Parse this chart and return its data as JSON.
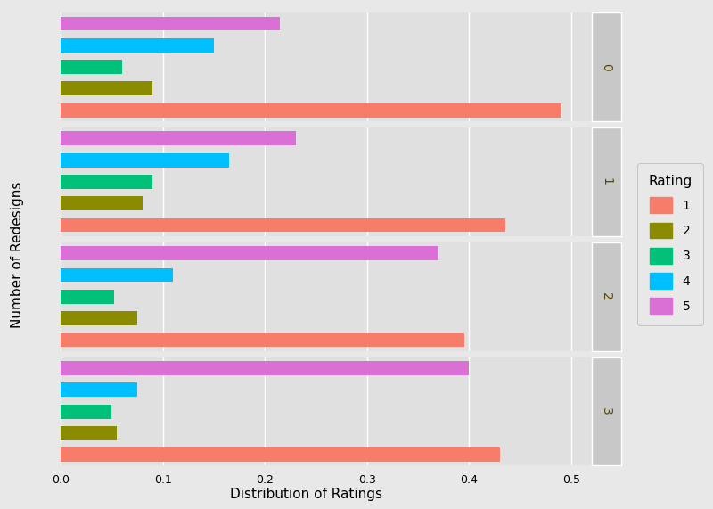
{
  "xlabel": "Distribution of Ratings",
  "ylabel": "Number of Redesigns",
  "facets": [
    0,
    1,
    2,
    3
  ],
  "ratings": [
    1,
    2,
    3,
    4,
    5
  ],
  "colors": {
    "1": "#F87C6A",
    "2": "#8B8B00",
    "3": "#00C07A",
    "4": "#00BFFF",
    "5": "#DA70D6"
  },
  "data": {
    "0": {
      "1": 0.49,
      "2": 0.09,
      "3": 0.06,
      "4": 0.15,
      "5": 0.215
    },
    "1": {
      "1": 0.435,
      "2": 0.08,
      "3": 0.09,
      "4": 0.165,
      "5": 0.23
    },
    "2": {
      "1": 0.395,
      "2": 0.075,
      "3": 0.052,
      "4": 0.11,
      "5": 0.37
    },
    "3": {
      "1": 0.43,
      "2": 0.055,
      "3": 0.05,
      "4": 0.075,
      "5": 0.4
    }
  },
  "xlim": [
    0,
    0.52
  ],
  "xticks": [
    0.0,
    0.1,
    0.2,
    0.3,
    0.4,
    0.5
  ],
  "background_color": "#E8E8E8",
  "panel_background": "#E8E8E8",
  "panel_inner_background": "#E0E0E0",
  "grid_color": "#FFFFFF",
  "strip_background": "#C8C8C8",
  "legend_title_fontsize": 11,
  "legend_fontsize": 10,
  "axis_label_fontsize": 11,
  "tick_fontsize": 9,
  "strip_fontsize": 10
}
